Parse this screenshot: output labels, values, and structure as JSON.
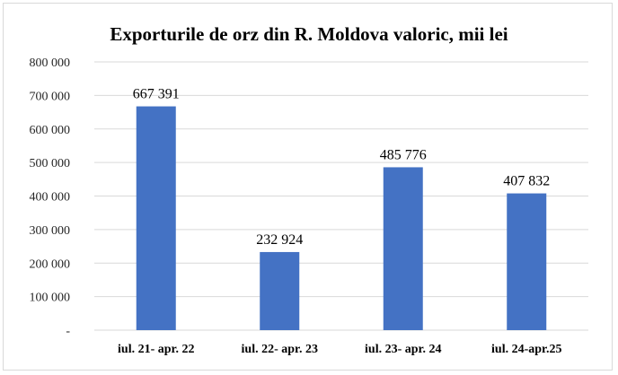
{
  "chart_data": {
    "type": "bar",
    "title": "Exporturile de orz din R. Moldova valoric, mii lei",
    "xlabel": "",
    "ylabel": "",
    "categories": [
      "iul. 21- apr. 22",
      "iul. 22- apr. 23",
      "iul. 23- apr. 24",
      "iul. 24-apr.25"
    ],
    "values": [
      667391,
      232924,
      485776,
      407832
    ],
    "data_labels": [
      "667 391",
      "232 924",
      "485 776",
      "407 832"
    ],
    "ylim": [
      0,
      800000
    ],
    "yticks": [
      0,
      100000,
      200000,
      300000,
      400000,
      500000,
      600000,
      700000,
      800000
    ],
    "ytick_labels": [
      "-",
      "100 000",
      "200 000",
      "300 000",
      "400 000",
      "500 000",
      "600 000",
      "700 000",
      "800 000"
    ],
    "grid": true,
    "legend": "none",
    "bar_color": "#4472c4",
    "grid_color": "#d9d9d9"
  }
}
